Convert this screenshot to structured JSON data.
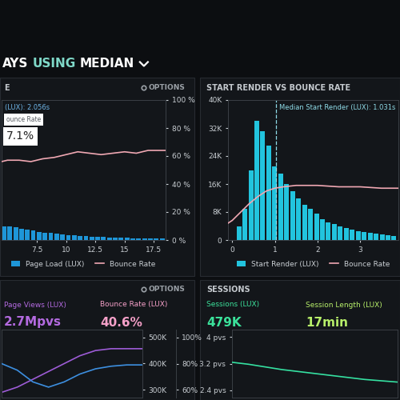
{
  "header": {
    "parts": [
      {
        "text": "AYS",
        "color": "#ffffff"
      },
      {
        "text": "USING",
        "color": "#7fd8c8"
      },
      {
        "text": "MEDIAN",
        "color": "#ffffff"
      }
    ]
  },
  "chart_data": [
    {
      "type": "histogram",
      "title": "E",
      "toolbar": "OPTIONS",
      "annotations": [
        "(LUX): 2.056s"
      ],
      "tooltip": {
        "label": "ounce Rate",
        "text": "7.1%"
      },
      "series": [
        {
          "name": "Page Load (LUX)",
          "type": "histogram",
          "color": "#1e96d8",
          "bins": [
            4.5,
            5,
            5.5,
            6,
            6.5,
            7,
            7.5,
            8,
            8.5,
            9,
            9.5,
            10,
            10.5,
            11,
            11.5,
            12,
            12.5,
            13,
            13.5,
            14,
            14.5,
            15,
            15.5,
            16,
            16.5,
            17,
            17.5,
            18,
            18.5
          ],
          "counts": [
            10,
            9.5,
            9,
            8.2,
            7.5,
            6.8,
            6,
            5.4,
            4.9,
            4.4,
            4,
            3.6,
            3.3,
            3,
            2.7,
            2.5,
            2.3,
            2.1,
            1.9,
            1.8,
            1.6,
            1.5,
            1.4,
            1.3,
            1.2,
            1.1,
            1,
            0.9
          ]
        },
        {
          "name": "Bounce Rate",
          "type": "line",
          "color": "#f0a8b3",
          "axis": "y2",
          "x": [
            4.5,
            5,
            6,
            7,
            8,
            9,
            10,
            11,
            12,
            13,
            14,
            15,
            16,
            17,
            18,
            18.5
          ],
          "values": [
            56,
            57,
            57,
            56,
            58,
            59,
            61,
            63,
            62,
            61,
            62,
            63,
            62,
            64,
            64,
            64
          ]
        }
      ],
      "xlim": [
        4.5,
        18.5
      ],
      "xticks": [
        7.5,
        10,
        12.5,
        15,
        17.5
      ],
      "ylim": [
        0,
        100
      ],
      "yticks": [],
      "y2lim": [
        0,
        100
      ],
      "y2ticks": [
        {
          "value": 0,
          "label": "0 %"
        },
        {
          "value": 20,
          "label": "20 %"
        },
        {
          "value": 40,
          "label": "40 %"
        },
        {
          "value": 60,
          "label": "60 %"
        },
        {
          "value": 80,
          "label": "80 %"
        },
        {
          "value": 100,
          "label": "100 %"
        }
      ],
      "legend": "bottom"
    },
    {
      "type": "histogram",
      "title": "START RENDER VS BOUNCE RATE",
      "reference_line": {
        "value": 1.031,
        "label": "Median Start Render (LUX): 1.031s"
      },
      "series": [
        {
          "name": "Start Render (LUX)",
          "type": "histogram",
          "color": "#22c4de",
          "bins": [
            0.1,
            0.24,
            0.38,
            0.52,
            0.66,
            0.8,
            0.94,
            1.08,
            1.22,
            1.36,
            1.5,
            1.64,
            1.78,
            1.92,
            2.06,
            2.2,
            2.34,
            2.48,
            2.62,
            2.76,
            2.9,
            3.04,
            3.18,
            3.32,
            3.46,
            3.6,
            3.74,
            3.88
          ],
          "counts": [
            4000,
            9000,
            20000,
            34000,
            31000,
            27000,
            21000,
            19000,
            16000,
            14000,
            12000,
            10000,
            9000,
            7500,
            6000,
            5000,
            4500,
            4000,
            3500,
            3000,
            2600,
            2200,
            2000,
            1800,
            1600,
            1400,
            1200
          ]
        },
        {
          "name": "Bounce Rate",
          "type": "line",
          "color": "#f0a8b3",
          "axis": "y2",
          "x": [
            -0.1,
            0,
            0.2,
            0.4,
            0.6,
            0.8,
            1.0,
            1.2,
            1.5,
            2,
            2.5,
            3,
            3.5,
            3.9
          ],
          "values": [
            12,
            14,
            20,
            26,
            31,
            35,
            37,
            38,
            39,
            39,
            38,
            38,
            37,
            37
          ]
        }
      ],
      "xlim": [
        -0.1,
        3.9
      ],
      "xticks": [
        0,
        1,
        2,
        3
      ],
      "ylim": [
        0,
        40000
      ],
      "yticks": [
        0,
        {
          "value": 8000,
          "label": "8K"
        },
        {
          "value": 16000,
          "label": "16K"
        },
        {
          "value": 24000,
          "label": "24K"
        },
        {
          "value": 32000,
          "label": "32K"
        },
        {
          "value": 40000,
          "label": "40K"
        }
      ],
      "y2lim": [
        0,
        100
      ],
      "y2ticks": [],
      "legend": "bottom"
    },
    {
      "type": "line",
      "toolbar": "OPTIONS",
      "kpis": [
        {
          "label": "Page Views (LUX)",
          "text": "2.7Mpvs",
          "color": "#b36ae0"
        },
        {
          "label": "Bounce Rate (LUX)",
          "text": "40.6%",
          "color": "#f5a0c8"
        }
      ],
      "series": [
        {
          "type": "line",
          "color": "#9d5cd6",
          "x": [
            0,
            1,
            2,
            3,
            4,
            5,
            6,
            7,
            8,
            9
          ],
          "values": [
            290000,
            310000,
            340000,
            370000,
            400000,
            430000,
            450000,
            457000,
            457000,
            457000
          ]
        },
        {
          "type": "line",
          "color": "#3d8fe0",
          "axis": "y2",
          "x": [
            0,
            1,
            2,
            3,
            4,
            5,
            6,
            7,
            8,
            9
          ],
          "values": [
            80,
            75,
            66,
            62,
            66,
            72,
            76,
            78,
            79,
            79
          ]
        }
      ],
      "xlim": [
        0,
        9
      ],
      "ylim": [
        270000,
        530000
      ],
      "yticks": [
        {
          "value": 300000,
          "label": "300K"
        },
        {
          "value": 400000,
          "label": "400K"
        },
        {
          "value": 500000,
          "label": "500K"
        }
      ],
      "y2lim": [
        54,
        106
      ],
      "y2ticks": [
        {
          "value": 60,
          "label": "60%"
        },
        {
          "value": 80,
          "label": "80%"
        },
        {
          "value": 100,
          "label": "100%"
        }
      ],
      "tick_labels": "y"
    },
    {
      "type": "line",
      "title": "SESSIONS",
      "kpis": [
        {
          "label": "Sessions (LUX)",
          "text": "479K",
          "color": "#3be29b"
        },
        {
          "label": "Session Length (LUX)",
          "text": "17min",
          "color": "#b8f06a"
        }
      ],
      "series": [
        {
          "type": "line",
          "color": "#35e0a1",
          "x": [
            0,
            1,
            2,
            3,
            4,
            5,
            6,
            7,
            8,
            9,
            10
          ],
          "values": [
            3.24,
            3.18,
            3.1,
            3.02,
            2.96,
            2.9,
            2.84,
            2.78,
            2.72,
            2.68,
            2.64
          ]
        }
      ],
      "xlim": [
        0,
        10
      ],
      "ylim": [
        2.17,
        4.23
      ],
      "yticks": [
        {
          "value": 2.4,
          "label": "2.4 pvs"
        },
        {
          "value": 3.2,
          "label": "3.2 pvs"
        },
        {
          "value": 4,
          "label": "4 pvs"
        }
      ],
      "tick_labels": "y"
    }
  ]
}
